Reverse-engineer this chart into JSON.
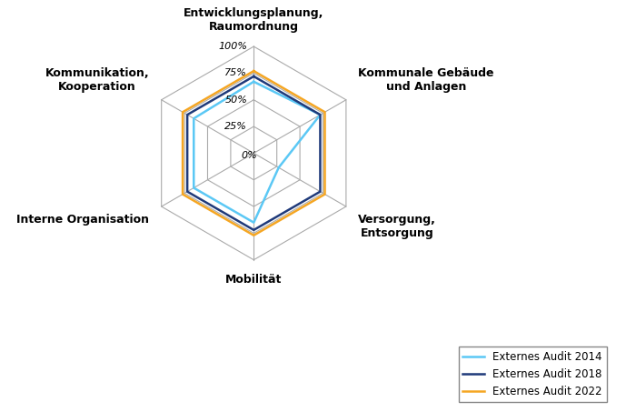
{
  "categories": [
    "Entwicklungsplanung,\nRaumordnung",
    "Kommunale Gebäude\nund Anlagen",
    "Versorgung,\nEntsorgung",
    "Mobilität",
    "Interne Organisation",
    "Kommunikation,\nKooperation"
  ],
  "series": [
    {
      "label": "Externes Audit 2014",
      "values": [
        67,
        72,
        27,
        65,
        65,
        65
      ],
      "color": "#5BC8F5",
      "linewidth": 1.8
    },
    {
      "label": "Externes Audit 2018",
      "values": [
        72,
        72,
        72,
        72,
        72,
        72
      ],
      "color": "#1F3A7A",
      "linewidth": 1.8
    },
    {
      "label": "Externes Audit 2022",
      "values": [
        77,
        77,
        77,
        77,
        77,
        77
      ],
      "color": "#F5A623",
      "linewidth": 1.8
    }
  ],
  "tick_values": [
    0,
    25,
    50,
    75,
    100
  ],
  "tick_labels": [
    "0%",
    "25%",
    "50%",
    "75%",
    "100%"
  ],
  "grid_color": "#AAAAAA",
  "background_color": "#FFFFFF",
  "legend_fontsize": 8.5,
  "category_fontsize": 9.0,
  "tick_fontsize": 8.0,
  "max_value": 100
}
